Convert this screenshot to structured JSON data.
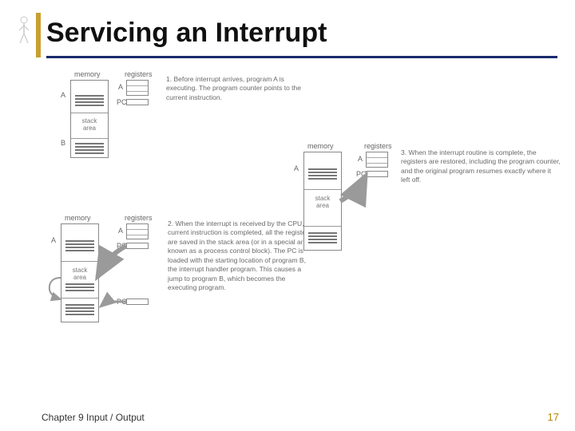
{
  "accent_color": "#c8a030",
  "underline_color": "#1a2a6c",
  "title_color": "#101010",
  "pagenum_color": "#b38600",
  "title": "Servicing an Interrupt",
  "footer_chapter": "Chapter 9 Input / Output",
  "page_number": "17",
  "labels": {
    "memory": "memory",
    "registers": "registers",
    "A": "A",
    "B": "B",
    "PC": "PC",
    "stack_area": "stack\narea"
  },
  "captions": {
    "step1": "1. Before interrupt arrives, program A is executing. The program counter points to the current instruction.",
    "step2": "2. When the interrupt is received by the CPU, the current instruction is completed, all the registers are saved in the stack area (or in a special area known as a process control block). The PC is loaded with the starting location of program B, the interrupt handler program. This causes a jump to program B, which becomes the executing program.",
    "step3": "3. When the interrupt routine is complete, the registers are restored, including the program counter, and the original program resumes exactly where it left off."
  },
  "diagram": {
    "memory_box": {
      "border": "#888888",
      "bg": "#ffffff"
    },
    "stripe_color": "#777777",
    "arrow_color": "#9a9a9a"
  }
}
